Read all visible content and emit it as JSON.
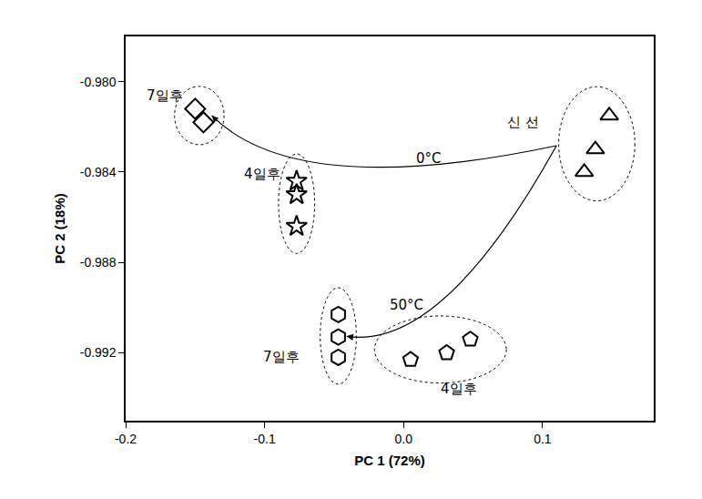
{
  "chart_data": {
    "type": "scatter",
    "x_label": "PC 1 (72%)",
    "y_label": "PC 2 (18%)",
    "xlim": [
      -0.2,
      0.18
    ],
    "xticks": [
      -0.2,
      -0.1,
      {
        "value": 0,
        "label": "0.0"
      },
      0.1
    ],
    "ylim": [
      -0.995,
      -0.978
    ],
    "yticks": [
      {
        "value": -0.98,
        "label": "-0.980"
      },
      {
        "value": -0.984,
        "label": "-0.984"
      },
      {
        "value": -0.988,
        "label": "-0.988"
      },
      {
        "value": -0.992,
        "label": "-0.992"
      }
    ],
    "grid": false,
    "color": "#000000",
    "series": [
      {
        "marker": "triangle-up-open",
        "x": [
          0.148,
          0.138,
          0.13
        ],
        "y": [
          -0.9815,
          -0.983,
          -0.984
        ]
      },
      {
        "marker": "diamond-open",
        "x": [
          -0.15,
          -0.144
        ],
        "y": [
          -0.9812,
          -0.9818
        ]
      },
      {
        "marker": "star-open",
        "x": [
          -0.077,
          -0.077,
          -0.077
        ],
        "y": [
          -0.9844,
          -0.985,
          -0.9864
        ]
      },
      {
        "marker": "hexagon-open",
        "x": [
          -0.047,
          -0.047,
          -0.047
        ],
        "y": [
          -0.9903,
          -0.9913,
          -0.9922
        ]
      },
      {
        "marker": "pentagon-open",
        "x": [
          0.005,
          0.031,
          0.048
        ],
        "y": [
          -0.9923,
          -0.992,
          -0.9914
        ]
      }
    ],
    "annotations": [
      {
        "text": "7일후",
        "x": -0.172,
        "y": -0.9806
      },
      {
        "text": "4일후",
        "x": -0.102,
        "y": -0.9841
      },
      {
        "text": "신 선",
        "x": 0.086,
        "y": -0.9818
      },
      {
        "text": "0°C",
        "x": 0.018,
        "y": -0.9834
      },
      {
        "text": "50°C",
        "x": 0.002,
        "y": -0.9899
      },
      {
        "text": "7일후",
        "x": -0.088,
        "y": -0.9922
      },
      {
        "text": "4일후",
        "x": 0.04,
        "y": -0.9936
      }
    ]
  }
}
